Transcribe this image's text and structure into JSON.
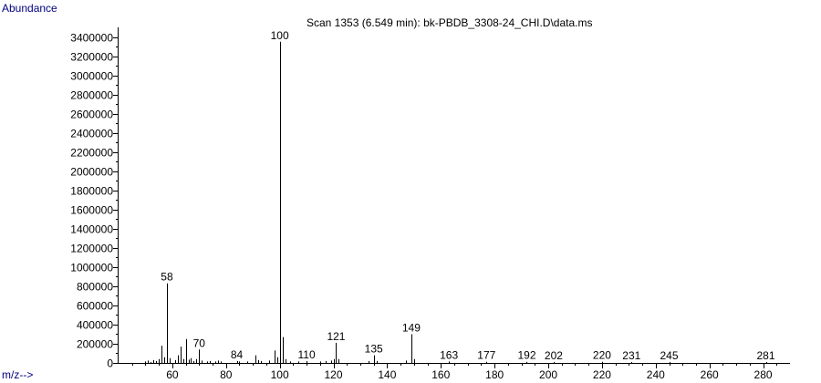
{
  "chart_data": {
    "type": "bar",
    "title": "Scan 1353 (6.549 min): bk-PBDB_3308-24_CHI.D\\data.ms",
    "ylabel": "Abundance",
    "xlabel": "m/z-->",
    "xlim": [
      40,
      290
    ],
    "ylim": [
      0,
      3500000
    ],
    "x_ticks": [
      60,
      80,
      100,
      120,
      140,
      160,
      180,
      200,
      220,
      240,
      260,
      280
    ],
    "y_ticks": [
      0,
      200000,
      400000,
      600000,
      800000,
      1000000,
      1200000,
      1400000,
      1600000,
      1800000,
      2000000,
      2200000,
      2400000,
      2600000,
      2800000,
      3000000,
      3200000,
      3400000
    ],
    "grid": false,
    "colors": {
      "axis_label": "#000080",
      "peaks": "#000000"
    },
    "peaks": [
      {
        "mz": 50,
        "abundance": 15000
      },
      {
        "mz": 51,
        "abundance": 25000
      },
      {
        "mz": 52,
        "abundance": 10000
      },
      {
        "mz": 53,
        "abundance": 30000
      },
      {
        "mz": 54,
        "abundance": 20000
      },
      {
        "mz": 55,
        "abundance": 40000
      },
      {
        "mz": 56,
        "abundance": 180000
      },
      {
        "mz": 57,
        "abundance": 60000
      },
      {
        "mz": 58,
        "abundance": 830000
      },
      {
        "mz": 59,
        "abundance": 50000
      },
      {
        "mz": 61,
        "abundance": 30000
      },
      {
        "mz": 62,
        "abundance": 80000
      },
      {
        "mz": 63,
        "abundance": 170000
      },
      {
        "mz": 64,
        "abundance": 40000
      },
      {
        "mz": 65,
        "abundance": 250000
      },
      {
        "mz": 66,
        "abundance": 35000
      },
      {
        "mz": 67,
        "abundance": 50000
      },
      {
        "mz": 68,
        "abundance": 20000
      },
      {
        "mz": 69,
        "abundance": 40000
      },
      {
        "mz": 70,
        "abundance": 140000
      },
      {
        "mz": 71,
        "abundance": 25000
      },
      {
        "mz": 73,
        "abundance": 15000
      },
      {
        "mz": 74,
        "abundance": 20000
      },
      {
        "mz": 76,
        "abundance": 15000
      },
      {
        "mz": 77,
        "abundance": 25000
      },
      {
        "mz": 78,
        "abundance": 15000
      },
      {
        "mz": 84,
        "abundance": 20000
      },
      {
        "mz": 85,
        "abundance": 15000
      },
      {
        "mz": 88,
        "abundance": 15000
      },
      {
        "mz": 91,
        "abundance": 80000
      },
      {
        "mz": 92,
        "abundance": 30000
      },
      {
        "mz": 93,
        "abundance": 20000
      },
      {
        "mz": 96,
        "abundance": 25000
      },
      {
        "mz": 98,
        "abundance": 130000
      },
      {
        "mz": 99,
        "abundance": 60000
      },
      {
        "mz": 100,
        "abundance": 3350000
      },
      {
        "mz": 101,
        "abundance": 270000
      },
      {
        "mz": 102,
        "abundance": 40000
      },
      {
        "mz": 104,
        "abundance": 15000
      },
      {
        "mz": 107,
        "abundance": 15000
      },
      {
        "mz": 110,
        "abundance": 20000
      },
      {
        "mz": 115,
        "abundance": 15000
      },
      {
        "mz": 117,
        "abundance": 20000
      },
      {
        "mz": 119,
        "abundance": 25000
      },
      {
        "mz": 120,
        "abundance": 40000
      },
      {
        "mz": 121,
        "abundance": 210000
      },
      {
        "mz": 122,
        "abundance": 40000
      },
      {
        "mz": 133,
        "abundance": 20000
      },
      {
        "mz": 135,
        "abundance": 80000
      },
      {
        "mz": 136,
        "abundance": 20000
      },
      {
        "mz": 147,
        "abundance": 25000
      },
      {
        "mz": 149,
        "abundance": 300000
      },
      {
        "mz": 150,
        "abundance": 40000
      },
      {
        "mz": 163,
        "abundance": 15000
      },
      {
        "mz": 177,
        "abundance": 12000
      },
      {
        "mz": 192,
        "abundance": 12000
      },
      {
        "mz": 202,
        "abundance": 10000
      },
      {
        "mz": 220,
        "abundance": 12000
      },
      {
        "mz": 231,
        "abundance": 10000
      },
      {
        "mz": 245,
        "abundance": 10000
      },
      {
        "mz": 281,
        "abundance": 10000
      }
    ],
    "labeled_peaks": [
      {
        "mz": 58,
        "label": "58"
      },
      {
        "mz": 70,
        "label": "70"
      },
      {
        "mz": 84,
        "label": "84"
      },
      {
        "mz": 100,
        "label": "100"
      },
      {
        "mz": 110,
        "label": "110"
      },
      {
        "mz": 121,
        "label": "121"
      },
      {
        "mz": 135,
        "label": "135"
      },
      {
        "mz": 149,
        "label": "149"
      },
      {
        "mz": 163,
        "label": "163"
      },
      {
        "mz": 177,
        "label": "177"
      },
      {
        "mz": 192,
        "label": "192"
      },
      {
        "mz": 202,
        "label": "202"
      },
      {
        "mz": 220,
        "label": "220"
      },
      {
        "mz": 231,
        "label": "231"
      },
      {
        "mz": 245,
        "label": "245"
      },
      {
        "mz": 281,
        "label": "281"
      }
    ]
  }
}
